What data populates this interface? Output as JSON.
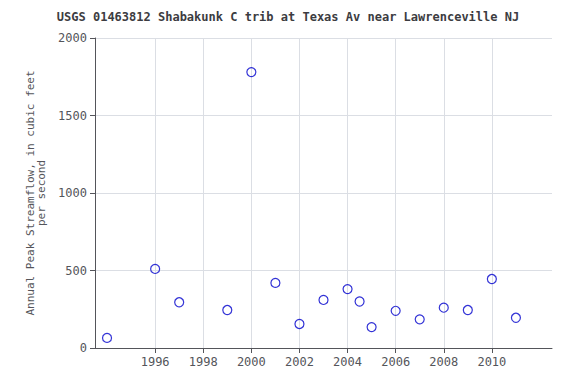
{
  "chart_data": {
    "type": "scatter",
    "title": "USGS 01463812 Shabakunk C trib at Texas Av near Lawrenceville NJ",
    "ylabel": "Annual Peak Streamflow, in cubic feet\nper second",
    "x": [
      1994,
      1996,
      1997,
      1999,
      2000,
      2001,
      2002,
      2003,
      2004,
      2004.5,
      2005,
      2006,
      2007,
      2008,
      2009,
      2010,
      2011
    ],
    "values": [
      65,
      510,
      295,
      245,
      1780,
      420,
      155,
      310,
      380,
      300,
      135,
      240,
      185,
      260,
      245,
      445,
      195
    ],
    "color": "#0000cc",
    "marker": "circle",
    "xlim": [
      1993.5,
      2012.5
    ],
    "ylim": [
      0,
      2000
    ],
    "xticks": [
      1996,
      1998,
      2000,
      2002,
      2004,
      2006,
      2008,
      2010
    ],
    "yticks": [
      0,
      500,
      1000,
      1500,
      2000
    ],
    "grid": true
  }
}
